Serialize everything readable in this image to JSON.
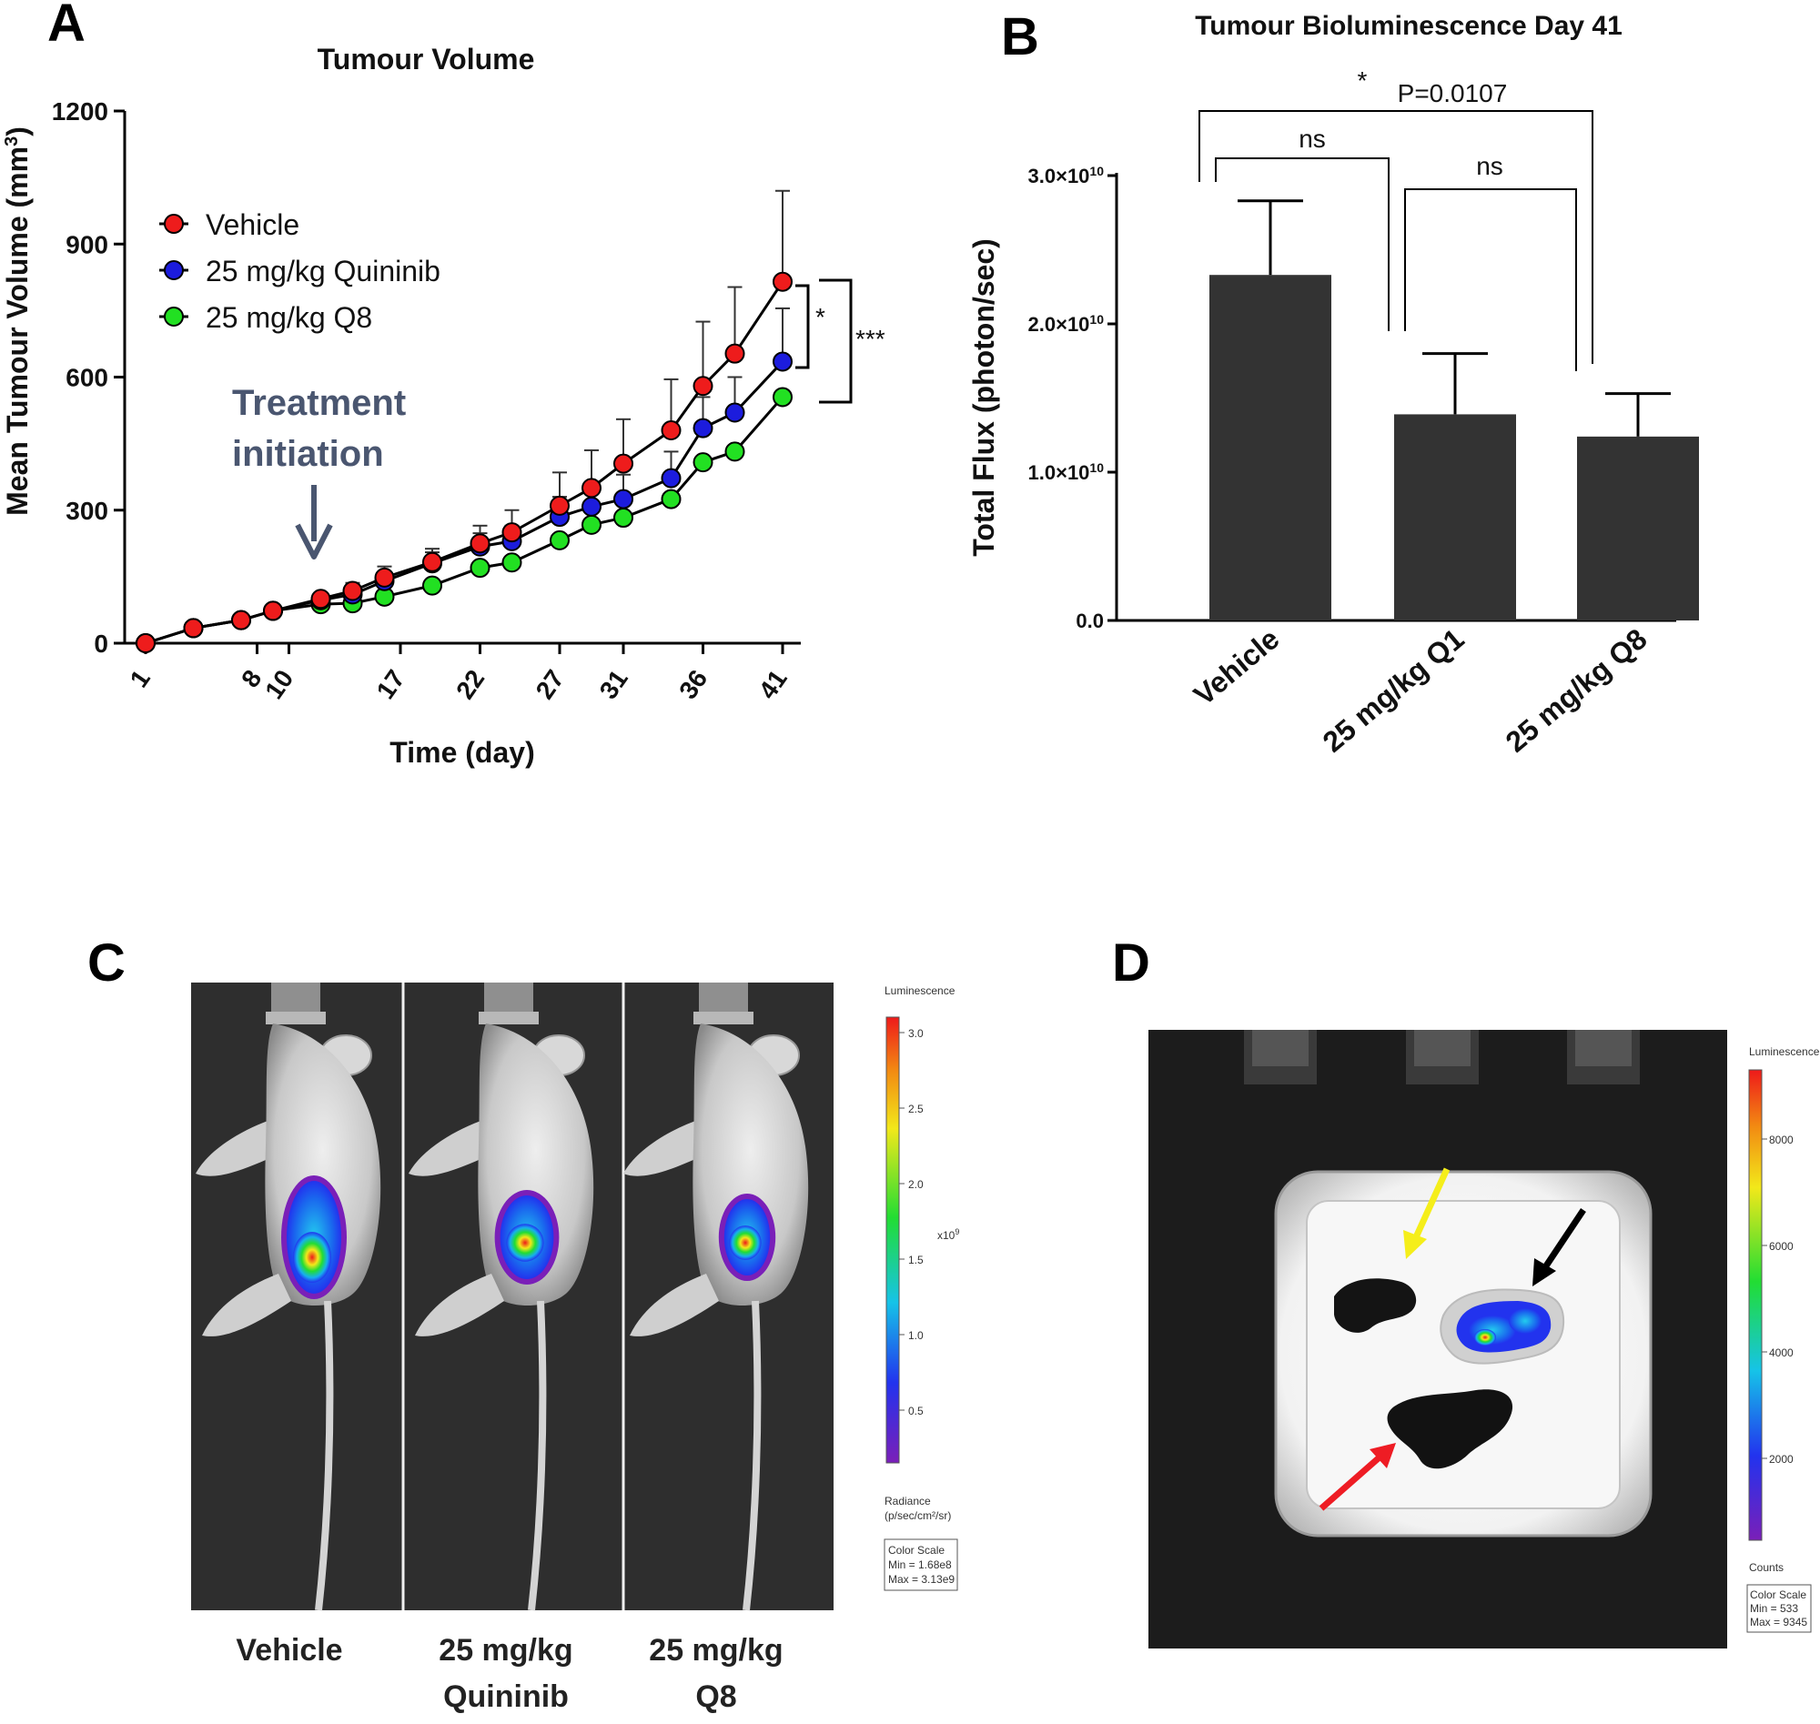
{
  "panels": {
    "a": "A",
    "b": "B",
    "c": "C",
    "d": "D"
  },
  "colors": {
    "vehicle": "#ee1c1c",
    "quininib": "#1c1cdd",
    "q8": "#22e022",
    "bar": "#333333",
    "arrow": "#4a5670",
    "yellow_arrow": "#f5ee1a",
    "red_arrow": "#ee1c24",
    "black_arrow": "#000000"
  },
  "chart_data": [
    {
      "type": "line",
      "title": "Tumour Volume",
      "xlabel": "Time (day)",
      "ylabel": "Mean Tumour Volume (mm³)",
      "ylabel_main": "Mean Tumour Volume (mm",
      "ylabel_sup": "3",
      "ylabel_end": ")",
      "ylim": [
        0,
        1200
      ],
      "yticks": [
        0,
        300,
        600,
        900,
        1200
      ],
      "xlim": [
        1,
        42
      ],
      "xticks": [
        1,
        8,
        10,
        17,
        22,
        27,
        31,
        36,
        41
      ],
      "xtick_labels": [
        "1",
        "8",
        "10",
        "17",
        "22",
        "27",
        "31",
        "36",
        "41"
      ],
      "legend_position": "top-left",
      "series": [
        {
          "name": "Vehicle",
          "color": "#ee1c1c",
          "x": [
            1,
            4,
            7,
            9,
            12,
            14,
            16,
            19,
            22,
            24,
            27,
            29,
            31,
            34,
            36,
            38,
            41
          ],
          "y": [
            0,
            34,
            52,
            73,
            100,
            118,
            148,
            183,
            225,
            250,
            310,
            350,
            405,
            480,
            580,
            653,
            815
          ],
          "err": [
            0,
            4,
            6,
            8,
            10,
            18,
            25,
            30,
            40,
            50,
            75,
            85,
            100,
            115,
            145,
            150,
            205
          ]
        },
        {
          "name": "25 mg/kg Quininib",
          "color": "#1c1cdd",
          "x": [
            1,
            4,
            7,
            9,
            12,
            14,
            16,
            19,
            22,
            24,
            27,
            29,
            31,
            34,
            36,
            38,
            41
          ],
          "y": [
            0,
            34,
            52,
            73,
            97,
            110,
            140,
            180,
            218,
            230,
            285,
            308,
            325,
            372,
            485,
            520,
            635
          ],
          "err": [
            0,
            4,
            6,
            8,
            10,
            15,
            20,
            25,
            30,
            35,
            45,
            50,
            55,
            60,
            70,
            80,
            120
          ]
        },
        {
          "name": "25 mg/kg Q8",
          "color": "#22e022",
          "x": [
            1,
            4,
            7,
            9,
            12,
            14,
            16,
            19,
            22,
            24,
            27,
            29,
            31,
            34,
            36,
            38,
            41
          ],
          "y": [
            0,
            34,
            52,
            73,
            88,
            90,
            105,
            130,
            170,
            182,
            232,
            267,
            283,
            325,
            408,
            432,
            555
          ],
          "err": [
            0,
            0,
            0,
            0,
            0,
            0,
            0,
            0,
            0,
            0,
            0,
            0,
            0,
            0,
            0,
            0,
            0
          ]
        }
      ],
      "annotation": {
        "line1": "Treatment",
        "line2": "initiation"
      },
      "significance": [
        "*",
        "***"
      ]
    },
    {
      "type": "bar",
      "title": "Tumour Bioluminescence Day 41",
      "ylabel": "Total Flux (photon/sec)",
      "categories": [
        "Vehicle",
        "25 mg/kg Q1",
        "25 mg/kg Q8"
      ],
      "values": [
        23300000000.0,
        13900000000.0,
        12400000000.0
      ],
      "errors": [
        5000000000.0,
        4100000000.0,
        2900000000.0
      ],
      "ylim": [
        0,
        30000000000.0
      ],
      "ytick_values": [
        0,
        10000000000.0,
        20000000000.0,
        30000000000.0
      ],
      "ytick_labels": [
        {
          "base": "0.0",
          "exp": ""
        },
        {
          "base": "1.0×10",
          "exp": "10"
        },
        {
          "base": "2.0×10",
          "exp": "10"
        },
        {
          "base": "3.0×10",
          "exp": "10"
        }
      ],
      "comparisons": [
        {
          "from": 0,
          "to": 2,
          "star": "*",
          "label": "P=0.0107"
        },
        {
          "from": 0,
          "to": 1,
          "label": "ns"
        },
        {
          "from": 1,
          "to": 2,
          "label": "ns"
        }
      ]
    }
  ],
  "panel_c": {
    "captions": [
      {
        "line1": "Vehicle",
        "line2": ""
      },
      {
        "line1": "25 mg/kg",
        "line2": "Quininib"
      },
      {
        "line1": "25 mg/kg",
        "line2": "Q8"
      }
    ],
    "colorbar": {
      "title": "Luminescence",
      "ticks": [
        "3.0",
        "2.5",
        "2.0",
        "1.5",
        "1.0",
        "0.5"
      ],
      "multiplier": "x10",
      "multiplier_exp": "9",
      "unit_line1": "Radiance",
      "unit_line2": "(p/sec/cm²/sr)",
      "box_line1": "Color Scale",
      "box_line2": "Min = 1.68e8",
      "box_line3": "Max = 3.13e9"
    }
  },
  "panel_d": {
    "colorbar": {
      "title": "Luminescence",
      "ticks": [
        "8000",
        "6000",
        "4000",
        "2000"
      ],
      "unit": "Counts",
      "box_line1": "Color Scale",
      "box_line2": "Min = 533",
      "box_line3": "Max = 9345"
    }
  }
}
